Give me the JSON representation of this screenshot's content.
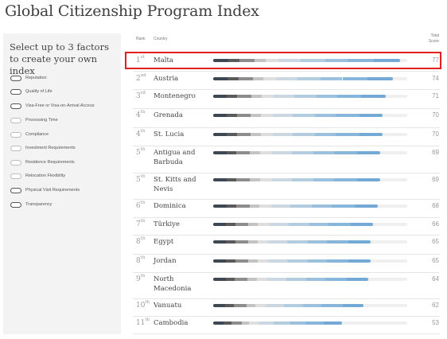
{
  "page": {
    "title": "Global Citizenship Program Index"
  },
  "sidebar": {
    "title": "Select up to 3 factors to create your own index",
    "factors": [
      {
        "label": "Reputation",
        "selected": false
      },
      {
        "label": "Quality of Life",
        "selected": false
      },
      {
        "label": "Visa-Free or Visa-on-Arrival Access",
        "selected": false
      },
      {
        "label": "Processing Time",
        "selected": false
      },
      {
        "label": "Compliance",
        "selected": false
      },
      {
        "label": "Investment Requirements",
        "selected": false
      },
      {
        "label": "Residence Requirements",
        "selected": false
      },
      {
        "label": "Relocation Flexibility",
        "selected": false
      },
      {
        "label": "Physical Visit Requirements",
        "selected": false
      },
      {
        "label": "Transparency",
        "selected": false
      }
    ]
  },
  "table": {
    "headers": {
      "rank": "Rank",
      "country": "Country",
      "total_line1": "Total",
      "total_line2": "Score"
    },
    "max_score": 80,
    "segment_colors": [
      "#3e4854",
      "#5a5a5a",
      "#8d8d8d",
      "#c3c3c3",
      "#dedede",
      "#cbd8e3",
      "#b2cce0",
      "#9ac0de",
      "#88b6db",
      "#74a9d6"
    ],
    "rows": [
      {
        "rank": "1",
        "suffix": "st",
        "country": "Malta",
        "score": "77",
        "value": 77,
        "highlighted": true
      },
      {
        "rank": "2",
        "suffix": "nd",
        "country": "Austria",
        "score": "74",
        "value": 74
      },
      {
        "rank": "3",
        "suffix": "rd",
        "country": "Montenegro",
        "score": "71",
        "value": 71
      },
      {
        "rank": "4",
        "suffix": "th",
        "country": "Grenada",
        "score": "70",
        "value": 70
      },
      {
        "rank": "4",
        "suffix": "th",
        "country": "St. Lucia",
        "score": "70",
        "value": 70
      },
      {
        "rank": "5",
        "suffix": "th",
        "country": "Antigua and Barbuda",
        "score": "69",
        "value": 69
      },
      {
        "rank": "5",
        "suffix": "th",
        "country": "St. Kitts and Nevis",
        "score": "69",
        "value": 69
      },
      {
        "rank": "6",
        "suffix": "th",
        "country": "Dominica",
        "score": "68",
        "value": 68
      },
      {
        "rank": "7",
        "suffix": "th",
        "country": "Türkiye",
        "score": "66",
        "value": 66
      },
      {
        "rank": "8",
        "suffix": "th",
        "country": "Egypt",
        "score": "65",
        "value": 65
      },
      {
        "rank": "8",
        "suffix": "th",
        "country": "Jordan",
        "score": "65",
        "value": 65
      },
      {
        "rank": "9",
        "suffix": "th",
        "country": "North Macedonia",
        "score": "64",
        "value": 64
      },
      {
        "rank": "10",
        "suffix": "th",
        "country": "Vanuatu",
        "score": "62",
        "value": 62
      },
      {
        "rank": "11",
        "suffix": "th",
        "country": "Cambodia",
        "score": "53",
        "value": 53
      }
    ]
  }
}
